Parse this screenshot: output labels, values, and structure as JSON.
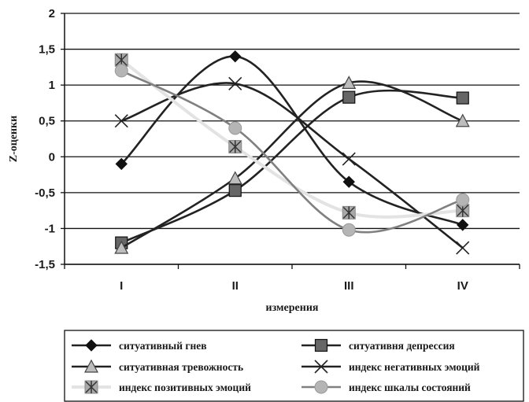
{
  "chart_data": {
    "type": "line",
    "categories": [
      "I",
      "II",
      "III",
      "IV"
    ],
    "xlabel": "измерения",
    "ylabel": "Z-оценки",
    "ylim": [
      -1.5,
      2
    ],
    "yticks": [
      "2",
      "1,5",
      "1",
      "0,5",
      "0",
      "-0,5",
      "-1",
      "-1,5"
    ],
    "grid": true,
    "legend_position": "bottom",
    "series": [
      {
        "name": "ситуативный гнев",
        "values": [
          -0.1,
          1.4,
          -0.35,
          -0.95
        ],
        "color": "#222222",
        "marker": "diamond"
      },
      {
        "name": "ситуативня депрессия",
        "values": [
          -1.2,
          -0.47,
          0.83,
          0.82
        ],
        "color": "#222222",
        "marker": "square"
      },
      {
        "name": "ситуативная тревожность",
        "values": [
          -1.27,
          -0.3,
          1.03,
          0.5
        ],
        "color": "#222222",
        "marker": "triangle"
      },
      {
        "name": "индекс негативных эмоций",
        "values": [
          0.5,
          1.02,
          -0.03,
          -1.27
        ],
        "color": "#222222",
        "marker": "x"
      },
      {
        "name": "индекс позитивных эмоций",
        "values": [
          1.35,
          0.14,
          -0.78,
          -0.75
        ],
        "color": "#e3e3e3",
        "marker": "asterisk"
      },
      {
        "name": "индекс шкалы состояний",
        "values": [
          1.2,
          0.4,
          -1.02,
          -0.6
        ],
        "color": "#808080",
        "marker": "circle"
      }
    ]
  }
}
